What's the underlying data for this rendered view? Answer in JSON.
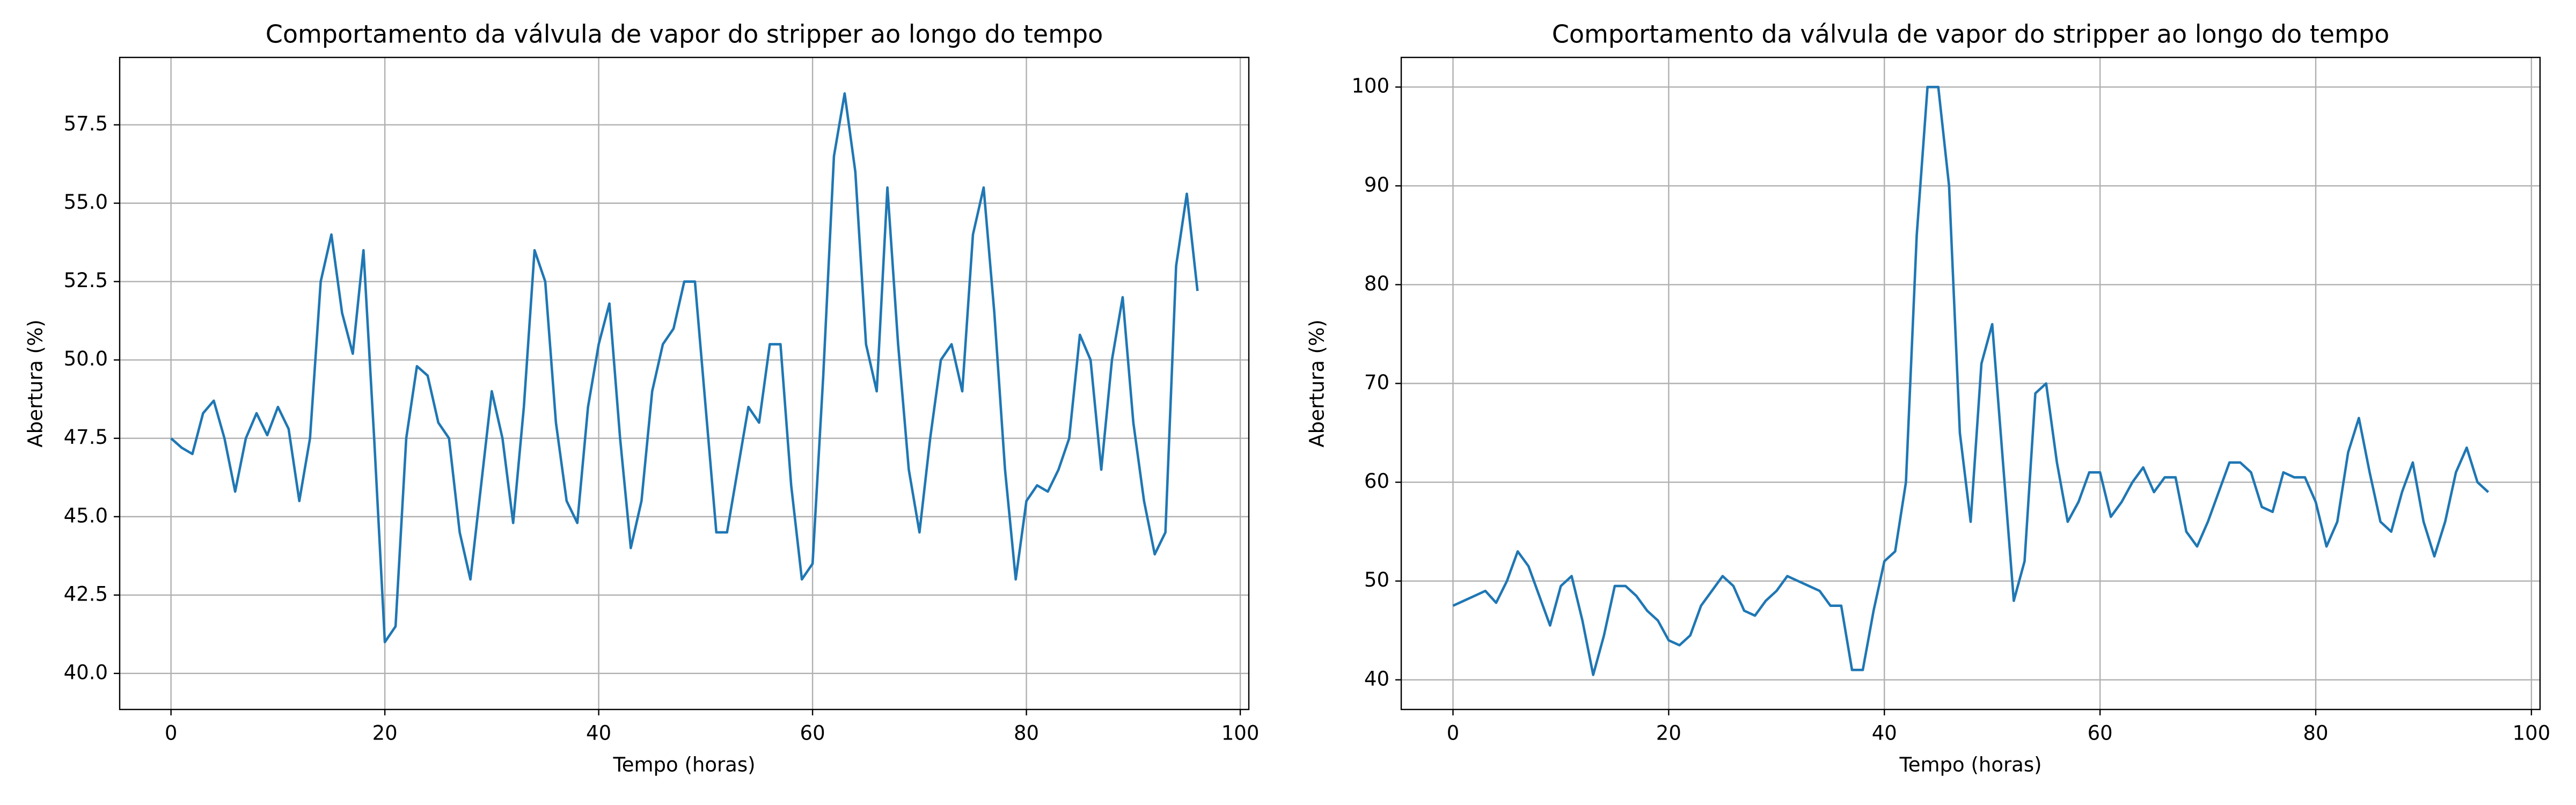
{
  "chart_data": [
    {
      "type": "line",
      "title": "Comportamento da válvula de vapor do stripper ao longo do tempo",
      "xlabel": "Tempo (horas)",
      "ylabel": "Abertura (%)",
      "grid": true,
      "xlim": [
        -4.8,
        100.8
      ],
      "xticks": [
        0,
        20,
        40,
        60,
        80,
        100
      ],
      "ylim": [
        38.85,
        59.65
      ],
      "yticks": [
        {
          "value": 40,
          "label": "40.0"
        },
        42.5,
        {
          "value": 45,
          "label": "45.0"
        },
        47.5,
        {
          "value": 50,
          "label": "50.0"
        },
        52.5,
        {
          "value": 55,
          "label": "55.0"
        },
        57.5
      ],
      "x": [
        0,
        1,
        2,
        3,
        4,
        5,
        6,
        7,
        8,
        9,
        10,
        11,
        12,
        13,
        14,
        15,
        16,
        17,
        18,
        19,
        20,
        21,
        22,
        23,
        24,
        25,
        26,
        27,
        28,
        29,
        30,
        31,
        32,
        33,
        34,
        35,
        36,
        37,
        38,
        39,
        40,
        41,
        42,
        43,
        44,
        45,
        46,
        47,
        48,
        49,
        50,
        51,
        52,
        53,
        54,
        55,
        56,
        57,
        58,
        59,
        60,
        61,
        62,
        63,
        64,
        65,
        66,
        67,
        68,
        69,
        70,
        71,
        72,
        73,
        74,
        75,
        76,
        77,
        78,
        79,
        80,
        81,
        82,
        83,
        84,
        85,
        86,
        87,
        88,
        89,
        90,
        91,
        92,
        93,
        94,
        95,
        96
      ],
      "series": [
        {
          "color": "#1f77b4",
          "values": [
            47.5,
            47.2,
            47.0,
            48.3,
            48.7,
            47.5,
            45.8,
            47.5,
            48.3,
            47.6,
            48.5,
            47.8,
            45.5,
            47.5,
            52.5,
            54.0,
            51.5,
            50.2,
            53.5,
            47.5,
            41.0,
            41.5,
            47.5,
            49.8,
            49.5,
            48.0,
            47.5,
            44.5,
            43.0,
            46.0,
            49.0,
            47.5,
            44.8,
            48.5,
            53.5,
            52.5,
            48.0,
            45.5,
            44.8,
            48.5,
            50.5,
            51.8,
            47.5,
            44.0,
            45.5,
            49.0,
            50.5,
            51.0,
            52.5,
            52.5,
            48.5,
            44.5,
            44.5,
            46.5,
            48.5,
            48.0,
            50.5,
            50.5,
            46.0,
            43.0,
            43.5,
            49.5,
            56.5,
            58.5,
            56.0,
            50.5,
            49.0,
            55.5,
            50.5,
            46.5,
            44.5,
            47.5,
            50.0,
            50.5,
            49.0,
            54.0,
            55.5,
            51.5,
            46.5,
            43.0,
            45.5,
            46.0,
            45.8,
            46.5,
            47.5,
            50.8,
            50.0,
            46.5,
            50.0,
            52.0,
            48.0,
            45.5,
            43.8,
            44.5,
            53.0,
            55.3,
            52.2
          ]
        }
      ]
    },
    {
      "type": "line",
      "title": "Comportamento da válvula de vapor do stripper ao longo do tempo",
      "xlabel": "Tempo (horas)",
      "ylabel": "Abertura (%)",
      "grid": true,
      "xlim": [
        -4.8,
        100.8
      ],
      "xticks": [
        0,
        20,
        40,
        60,
        80,
        100
      ],
      "ylim": [
        37,
        103
      ],
      "yticks": [
        40,
        50,
        60,
        70,
        80,
        90,
        100
      ],
      "x": [
        0,
        1,
        2,
        3,
        4,
        5,
        6,
        7,
        8,
        9,
        10,
        11,
        12,
        13,
        14,
        15,
        16,
        17,
        18,
        19,
        20,
        21,
        22,
        23,
        24,
        25,
        26,
        27,
        28,
        29,
        30,
        31,
        32,
        33,
        34,
        35,
        36,
        37,
        38,
        39,
        40,
        41,
        42,
        43,
        44,
        45,
        46,
        47,
        48,
        49,
        50,
        51,
        52,
        53,
        54,
        55,
        56,
        57,
        58,
        59,
        60,
        61,
        62,
        63,
        64,
        65,
        66,
        67,
        68,
        69,
        70,
        71,
        72,
        73,
        74,
        75,
        76,
        77,
        78,
        79,
        80,
        81,
        82,
        83,
        84,
        85,
        86,
        87,
        88,
        89,
        90,
        91,
        92,
        93,
        94,
        95,
        96
      ],
      "series": [
        {
          "color": "#1f77b4",
          "values": [
            47.5,
            48,
            48.5,
            49,
            47.8,
            50,
            53,
            51.5,
            48.5,
            45.5,
            49.5,
            50.5,
            46,
            40.5,
            44.5,
            49.5,
            49.5,
            48.5,
            47,
            46,
            44,
            43.5,
            44.5,
            47.5,
            49,
            50.5,
            49.5,
            47,
            46.5,
            48,
            49,
            50.5,
            50,
            49.5,
            49,
            47.5,
            47.5,
            41,
            41,
            47,
            52,
            53,
            60,
            85,
            100,
            100,
            90,
            65,
            56,
            72,
            76,
            62,
            48,
            52,
            69,
            70,
            62,
            56,
            58,
            61,
            61,
            56.5,
            58,
            60,
            61.5,
            59,
            60.5,
            60.5,
            55,
            53.5,
            56,
            59,
            62,
            62,
            61,
            57.5,
            57,
            61,
            60.5,
            60.5,
            58,
            53.5,
            56,
            63,
            66.5,
            61,
            56,
            55,
            59,
            62,
            56,
            52.5,
            56,
            61,
            63.5,
            60,
            59
          ]
        }
      ]
    }
  ]
}
